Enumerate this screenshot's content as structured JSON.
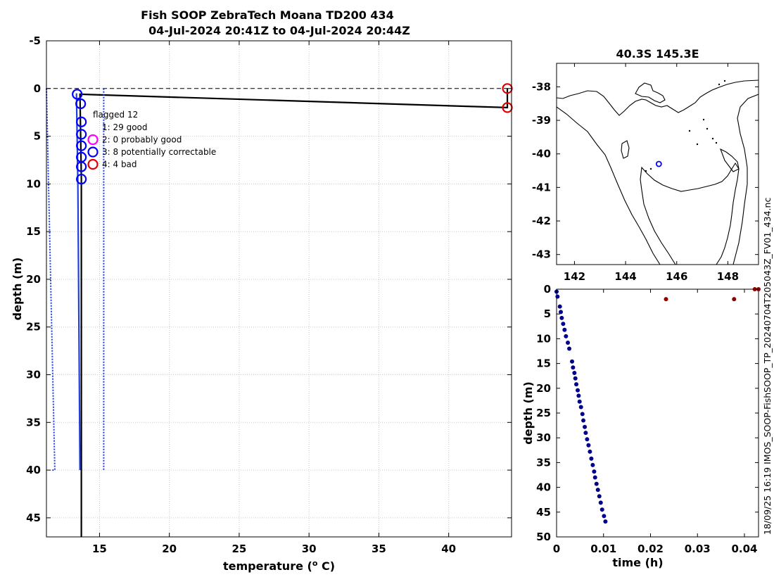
{
  "title_line1": "Fish SOOP ZebraTech Moana TD200 434",
  "title_line2": "04-Jul-2024 20:41Z to 04-Jul-2024 20:44Z",
  "side_label": "18/09/25 16:19 IMOS_SOOP-FishSOOP_TP_20240704T205043Z_FV01_434.nc",
  "colors": {
    "profile": "#1f3fe0",
    "envelope": "#1f3fe0",
    "raw_line": "#000000",
    "good": "#0000ff",
    "probably_good": "#ff00ff",
    "correctable": "#0000ff",
    "bad": "#e00000",
    "time_good": "#00008b",
    "time_bad": "#8b0000"
  },
  "chart_data": [
    {
      "type": "line",
      "name": "profile",
      "xlabel": "temperature (o C)",
      "xlabel_main": "temperature (",
      "xlabel_sup": "o",
      "xlabel_end": " C)",
      "ylabel": "depth (m)",
      "xlim": [
        11.2,
        44.5
      ],
      "ylim": [
        47,
        -5
      ],
      "y_reversed": true,
      "xticks": [
        15,
        20,
        25,
        30,
        35,
        40
      ],
      "yticks": [
        -5,
        0,
        5,
        10,
        15,
        20,
        25,
        30,
        35,
        40,
        45
      ],
      "grid": true,
      "surface_line_depth": 0,
      "series": [
        {
          "role": "raw_path",
          "points": [
            [
              13.7,
              47
            ],
            [
              13.7,
              9.5
            ],
            [
              13.6,
              0.6
            ],
            [
              44.2,
              2.0
            ],
            [
              44.2,
              0.0
            ]
          ]
        },
        {
          "role": "qc_profile",
          "points": [
            [
              13.35,
              0.5
            ],
            [
              13.45,
              10
            ],
            [
              13.5,
              20
            ],
            [
              13.55,
              30
            ],
            [
              13.6,
              40
            ]
          ]
        },
        {
          "role": "envelope_low",
          "points": [
            [
              11.2,
              0
            ],
            [
              11.35,
              10
            ],
            [
              11.5,
              20
            ],
            [
              11.65,
              30
            ],
            [
              11.8,
              40
            ],
            [
              11.55,
              40
            ]
          ]
        },
        {
          "role": "envelope_high",
          "points": [
            [
              15.3,
              0
            ],
            [
              15.3,
              40
            ]
          ]
        }
      ],
      "flag_markers": [
        {
          "flag": 3,
          "x": 13.4,
          "y": 0.6
        },
        {
          "flag": 3,
          "x": 13.65,
          "y": 1.6
        },
        {
          "flag": 3,
          "x": 13.7,
          "y": 3.5
        },
        {
          "flag": 3,
          "x": 13.7,
          "y": 4.8
        },
        {
          "flag": 3,
          "x": 13.7,
          "y": 6.0
        },
        {
          "flag": 3,
          "x": 13.7,
          "y": 7.2
        },
        {
          "flag": 3,
          "x": 13.7,
          "y": 8.2
        },
        {
          "flag": 3,
          "x": 13.7,
          "y": 9.5
        },
        {
          "flag": 4,
          "x": 44.2,
          "y": 0.0
        },
        {
          "flag": 4,
          "x": 44.2,
          "y": 2.0
        }
      ],
      "legend": {
        "title": "flagged 12",
        "placement": "top-left",
        "entries": [
          {
            "label": "1: 29 good",
            "color": "",
            "marker": false
          },
          {
            "label": "2: 0 probably good",
            "color": "#ff00ff",
            "marker": true
          },
          {
            "label": "3: 8 potentially correctable",
            "color": "#0000ff",
            "marker": true
          },
          {
            "label": "4: 4 bad",
            "color": "#e00000",
            "marker": true
          }
        ]
      }
    },
    {
      "type": "map",
      "name": "location",
      "title": "40.3S 145.3E",
      "xlim": [
        141.3,
        149.2
      ],
      "ylim": [
        -43.3,
        -37.3
      ],
      "xticks": [
        142,
        144,
        146,
        148
      ],
      "yticks": [
        -38,
        -39,
        -40,
        -41,
        -42,
        -43
      ],
      "grid": false,
      "position_marker": {
        "lon": 145.3,
        "lat": -40.3
      }
    },
    {
      "type": "scatter",
      "name": "depth-time",
      "xlabel": "time (h)",
      "ylabel": "depth (m)",
      "xlim": [
        0,
        0.043
      ],
      "ylim": [
        50,
        0
      ],
      "y_reversed": true,
      "xticks": [
        0,
        0.01,
        0.02,
        0.03,
        0.04
      ],
      "xtick_labels": [
        "0",
        "0.01",
        "0.02",
        "0.03",
        "0.04"
      ],
      "yticks": [
        0,
        5,
        10,
        15,
        20,
        25,
        30,
        35,
        40,
        45,
        50
      ],
      "grid": false,
      "good_points": [
        [
          0.0,
          0.5
        ],
        [
          0.0002,
          1.5
        ],
        [
          0.0007,
          3.5
        ],
        [
          0.0009,
          4.6
        ],
        [
          0.0011,
          5.8
        ],
        [
          0.0014,
          7.0
        ],
        [
          0.0017,
          8.2
        ],
        [
          0.002,
          9.5
        ],
        [
          0.0024,
          10.8
        ],
        [
          0.0027,
          12.0
        ],
        [
          0.0033,
          14.6
        ],
        [
          0.0035,
          15.8
        ],
        [
          0.0038,
          16.9
        ],
        [
          0.004,
          18.0
        ],
        [
          0.0042,
          19.2
        ],
        [
          0.0045,
          20.4
        ],
        [
          0.0047,
          21.5
        ],
        [
          0.0049,
          22.7
        ],
        [
          0.0052,
          23.8
        ],
        [
          0.0055,
          25.2
        ],
        [
          0.0057,
          26.5
        ],
        [
          0.006,
          27.8
        ],
        [
          0.0062,
          29.0
        ],
        [
          0.0065,
          30.3
        ],
        [
          0.0068,
          31.5
        ],
        [
          0.0071,
          32.8
        ],
        [
          0.0074,
          34.2
        ],
        [
          0.0077,
          35.5
        ],
        [
          0.008,
          36.8
        ],
        [
          0.0082,
          38.0
        ],
        [
          0.0085,
          39.3
        ],
        [
          0.0088,
          40.5
        ],
        [
          0.0091,
          41.8
        ],
        [
          0.0094,
          43.1
        ],
        [
          0.0097,
          44.5
        ],
        [
          0.0101,
          45.8
        ],
        [
          0.0104,
          46.9
        ]
      ],
      "bad_points": [
        [
          0.0233,
          2.0
        ],
        [
          0.0378,
          2.0
        ],
        [
          0.0422,
          0.0
        ],
        [
          0.043,
          0.0
        ]
      ]
    }
  ]
}
